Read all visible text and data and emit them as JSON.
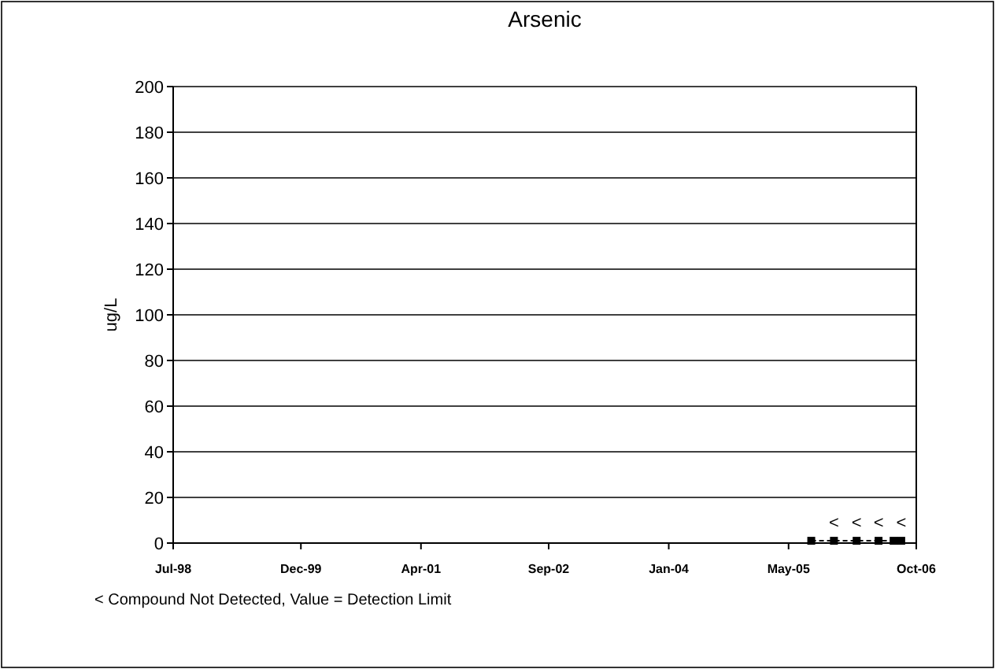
{
  "chart_data": {
    "type": "line",
    "title": "Arsenic",
    "ylabel": "ug/L",
    "x": [
      "2005-08",
      "2005-11",
      "2006-02",
      "2006-05",
      "2006-07",
      "2006-08"
    ],
    "series": [
      {
        "color": "#000000",
        "values": [
          1,
          1,
          1,
          1,
          1,
          1
        ]
      }
    ],
    "xlim": [
      "1998-07",
      "2006-10"
    ],
    "xticks": [
      {
        "value": "1998-07",
        "label": "Jul-98"
      },
      {
        "value": "1999-12",
        "label": "Dec-99"
      },
      {
        "value": "2001-04",
        "label": "Apr-01"
      },
      {
        "value": "2002-09",
        "label": "Sep-02"
      },
      {
        "value": "2004-01",
        "label": "Jan-04"
      },
      {
        "value": "2005-05",
        "label": "May-05"
      },
      {
        "value": "2006-10",
        "label": "Oct-06"
      }
    ],
    "ylim": [
      0,
      200
    ],
    "yticks": [
      0,
      20,
      40,
      60,
      80,
      100,
      120,
      140,
      160,
      180,
      200
    ],
    "grid": "y",
    "marker": "square",
    "line_style": "dashed",
    "annotations": [
      {
        "text": "<",
        "x": "2005-11",
        "y": 1
      },
      {
        "text": "<",
        "x": "2006-02",
        "y": 1
      },
      {
        "text": "<",
        "x": "2006-05",
        "y": 1
      },
      {
        "text": "<",
        "x": "2006-08",
        "y": 1
      },
      "< Compound Not Detected, Value = Detection Limit"
    ]
  }
}
